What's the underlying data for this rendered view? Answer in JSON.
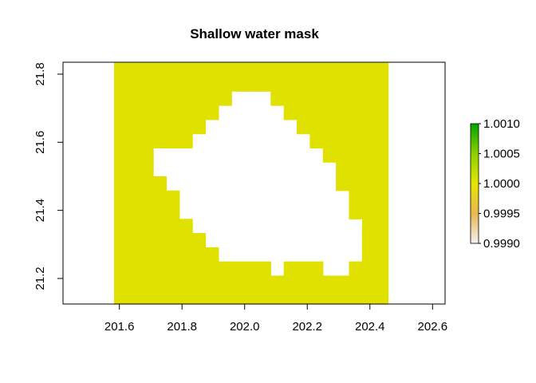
{
  "chart_data": {
    "type": "heatmap",
    "title": "Shallow water mask",
    "xlabel": "",
    "ylabel": "",
    "xlim": [
      201.42,
      202.64
    ],
    "ylim": [
      21.125,
      21.835
    ],
    "x_ticks": [
      "201.6",
      "201.8",
      "202.0",
      "202.2",
      "202.4",
      "202.6"
    ],
    "y_ticks": [
      "21.2",
      "21.4",
      "21.6",
      "21.8"
    ],
    "raster": {
      "xmin": 201.583,
      "ymin": 21.125,
      "cell_size": 0.04167,
      "ncol": 21,
      "nrow": 17,
      "value_color": "#e1e100",
      "mask_rows_top_to_bottom": [
        "111111111111111111111",
        "111111111111111111111",
        "111111111000111111111",
        "111111110000011111111",
        "111111100000001111111",
        "111111000000000111111",
        "111000000000000011111",
        "111000000000000001111",
        "111100000000000001111",
        "111110000000000000111",
        "111110000000000000111",
        "111111000000000000011",
        "111111100000000000011",
        "111111110000000000011",
        "111111111111011100111",
        "111111111111111111111",
        "111111111111111111111"
      ]
    },
    "legend": {
      "placement": "right",
      "labels": [
        "1.0010",
        "1.0005",
        "1.0000",
        "0.9995",
        "0.9990"
      ],
      "colors": [
        "#00a600",
        "#8bd000",
        "#e6e600",
        "#eab64e",
        "#f2f2f2"
      ]
    }
  }
}
